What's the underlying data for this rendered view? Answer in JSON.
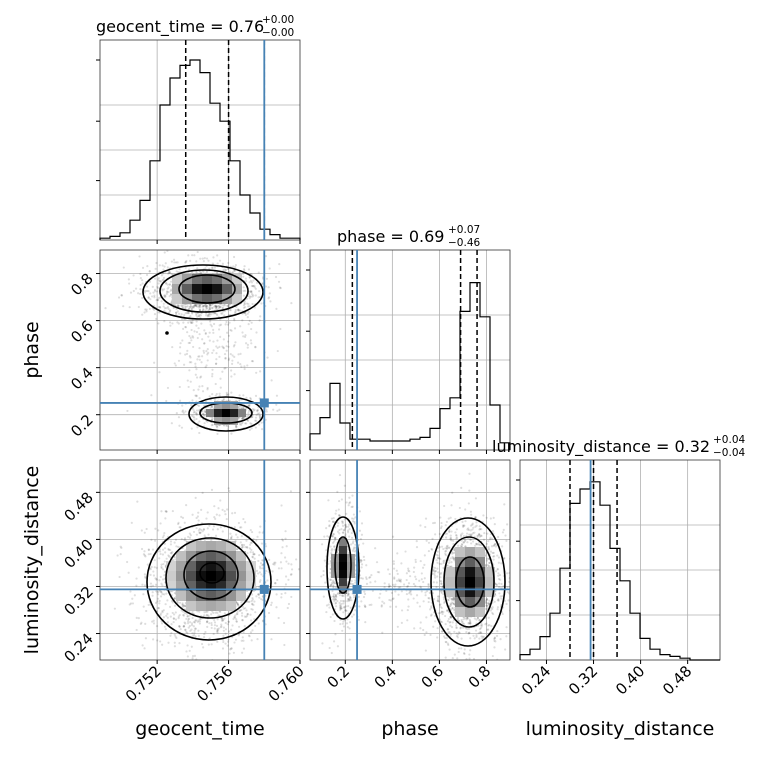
{
  "chart_data": {
    "type": "corner",
    "parameters": [
      "geocent_time",
      "phase",
      "luminosity_distance"
    ],
    "titles": [
      {
        "param": "geocent_time",
        "text": "geocent_time = 0.76",
        "plus": "+0.00",
        "minus": "−0.00"
      },
      {
        "param": "phase",
        "text": "phase = 0.69",
        "plus": "+0.07",
        "minus": "−0.46"
      },
      {
        "param": "luminosity_distance",
        "text": "luminosity_distance = 0.32",
        "plus": "+0.04",
        "minus": "−0.04"
      }
    ],
    "axis_labels": {
      "x": [
        "geocent_time",
        "phase",
        "luminosity_distance"
      ],
      "y": [
        "phase",
        "luminosity_distance"
      ]
    },
    "ranges": {
      "geocent_time": [
        0.7488,
        0.76
      ],
      "phase": [
        0.05,
        0.9
      ],
      "luminosity_distance": [
        0.195,
        0.535
      ]
    },
    "ticks": {
      "geocent_time": [
        {
          "v": 0.752,
          "label": "0.752"
        },
        {
          "v": 0.756,
          "label": "0.756"
        },
        {
          "v": 0.76,
          "label": "0.760"
        }
      ],
      "phase": [
        {
          "v": 0.2,
          "label": "0.2"
        },
        {
          "v": 0.4,
          "label": "0.4"
        },
        {
          "v": 0.6,
          "label": "0.6"
        },
        {
          "v": 0.8,
          "label": "0.8"
        }
      ],
      "luminosity_distance": [
        {
          "v": 0.24,
          "label": "0.24"
        },
        {
          "v": 0.32,
          "label": "0.32"
        },
        {
          "v": 0.4,
          "label": "0.40"
        },
        {
          "v": 0.48,
          "label": "0.48"
        }
      ]
    },
    "quantiles": {
      "geocent_time": [
        0.7536,
        0.756,
        0.758
      ],
      "phase": [
        0.23,
        0.69,
        0.76
      ],
      "luminosity_distance": [
        0.28,
        0.32,
        0.36
      ]
    },
    "truths": {
      "geocent_time": 0.758,
      "phase": 0.25,
      "luminosity_distance": 0.315
    },
    "histograms": {
      "geocent_time": [
        0.01,
        0.02,
        0.04,
        0.11,
        0.22,
        0.44,
        0.75,
        0.9,
        0.97,
        1.0,
        0.93,
        0.76,
        0.66,
        0.44,
        0.25,
        0.15,
        0.06,
        0.03,
        0.01,
        0.01
      ],
      "phase": [
        0.09,
        0.18,
        0.37,
        0.15,
        0.06,
        0.06,
        0.05,
        0.05,
        0.05,
        0.05,
        0.06,
        0.07,
        0.12,
        0.23,
        0.29,
        0.77,
        0.93,
        0.74,
        0.25,
        0.04
      ],
      "luminosity_distance": [
        0.03,
        0.06,
        0.13,
        0.26,
        0.51,
        0.87,
        0.95,
        0.99,
        0.86,
        0.62,
        0.44,
        0.26,
        0.12,
        0.06,
        0.03,
        0.02,
        0.01,
        0.0,
        0.0,
        0.0
      ]
    }
  }
}
